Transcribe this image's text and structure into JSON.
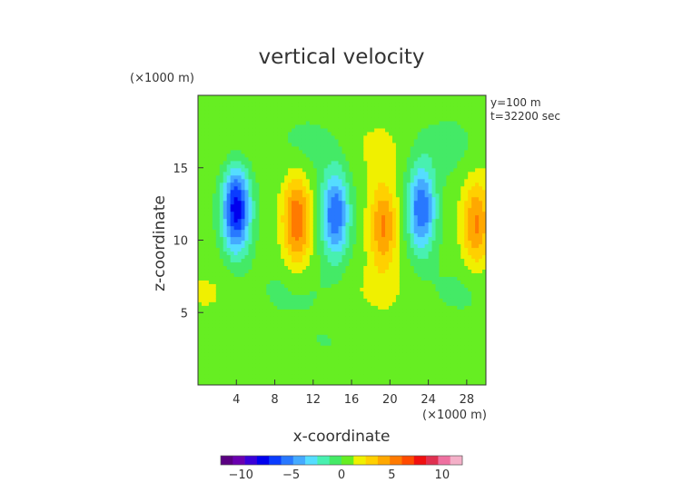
{
  "chart_data": {
    "type": "heatmap",
    "title": "vertical velocity",
    "xlabel": "x-coordinate",
    "ylabel": "z-coordinate",
    "x_unit": "(×1000 m)",
    "y_unit": "(×1000 m)",
    "annotations": [
      "y=100 m",
      "t=32200 sec"
    ],
    "xlim": [
      0,
      30
    ],
    "ylim": [
      0,
      20
    ],
    "x_ticks": [
      4,
      8,
      12,
      16,
      20,
      24,
      28
    ],
    "y_ticks": [
      5,
      10,
      15
    ],
    "colorbar": {
      "min": -12,
      "max": 12,
      "ticks": [
        -10,
        -5,
        0,
        5,
        10
      ],
      "colors": [
        "#5a0082",
        "#6a00b0",
        "#3a00d8",
        "#0000ee",
        "#0a3cff",
        "#2878ff",
        "#44aaff",
        "#55ddff",
        "#48f0b0",
        "#44ea66",
        "#66ee22",
        "#f0f000",
        "#ffd000",
        "#ffa800",
        "#ff7a00",
        "#ff4a00",
        "#f01010",
        "#e03050",
        "#ee70a0",
        "#f4b0c8"
      ]
    },
    "features": [
      {
        "x": 4.0,
        "z": 12.2,
        "w": -8.5
      },
      {
        "x": 10.3,
        "z": 11.4,
        "w": 5.5
      },
      {
        "x": 14.3,
        "z": 11.8,
        "w": -6.5
      },
      {
        "x": 19.3,
        "z": 11.0,
        "w": 4.5
      },
      {
        "x": 23.3,
        "z": 12.2,
        "w": -6.5
      },
      {
        "x": 29.0,
        "z": 11.2,
        "w": 4.5
      }
    ]
  }
}
